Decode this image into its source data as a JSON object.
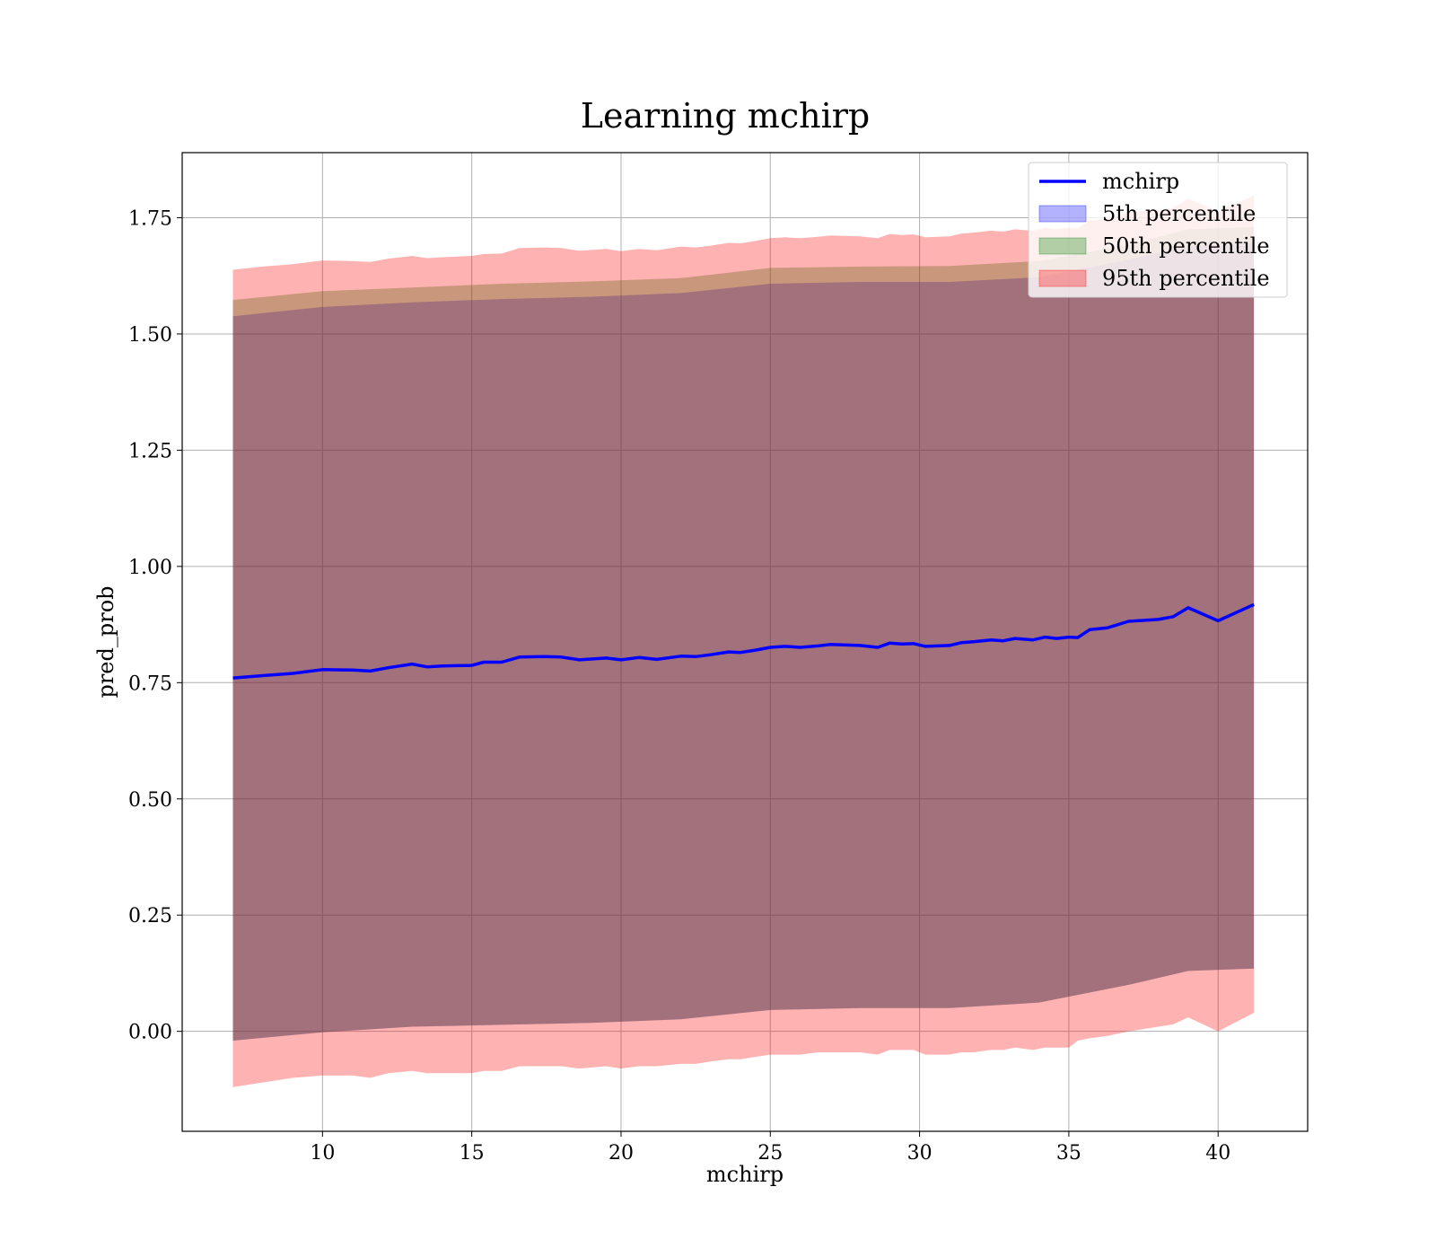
{
  "chart_data": {
    "type": "line",
    "title": "Learning mchirp",
    "xlabel": "mchirp",
    "ylabel": "pred_prob",
    "xlim": [
      5.3,
      43.0
    ],
    "ylim": [
      -0.215,
      1.89
    ],
    "xticks": [
      10,
      15,
      20,
      25,
      30,
      35,
      40
    ],
    "yticks": [
      0.0,
      0.25,
      0.5,
      0.75,
      1.0,
      1.25,
      1.5,
      1.75
    ],
    "ytick_labels": [
      "0.00",
      "0.25",
      "0.50",
      "0.75",
      "1.00",
      "1.25",
      "1.50",
      "1.75"
    ],
    "grid": true,
    "legend_position": "top-right",
    "colors": {
      "mchirp": "#0000ff",
      "p5": "#0000ff",
      "p50": "#008000",
      "p95": "#ff0000",
      "combined_band": "#a0727a"
    },
    "series": [
      {
        "name": "mchirp",
        "x": [
          7.0,
          8.0,
          9.0,
          10.0,
          11.0,
          11.6,
          12.2,
          13.0,
          13.5,
          14.0,
          15.0,
          15.4,
          16.0,
          16.6,
          17.4,
          18.0,
          18.6,
          19.5,
          20.0,
          20.6,
          21.2,
          22.0,
          22.5,
          23.0,
          23.6,
          24.0,
          24.5,
          25.0,
          25.5,
          26.0,
          26.6,
          27.0,
          28.0,
          28.6,
          29.0,
          29.4,
          29.8,
          30.2,
          31.0,
          31.4,
          31.8,
          32.4,
          32.8,
          33.2,
          33.8,
          34.2,
          34.6,
          35.0,
          35.3,
          35.7,
          36.3,
          37.0,
          38.0,
          38.5,
          39.0,
          40.0,
          41.2
        ],
        "y": [
          0.76,
          0.765,
          0.77,
          0.778,
          0.777,
          0.775,
          0.782,
          0.79,
          0.784,
          0.786,
          0.787,
          0.794,
          0.794,
          0.805,
          0.806,
          0.805,
          0.799,
          0.803,
          0.799,
          0.804,
          0.8,
          0.807,
          0.806,
          0.81,
          0.816,
          0.815,
          0.82,
          0.826,
          0.828,
          0.826,
          0.829,
          0.832,
          0.83,
          0.826,
          0.835,
          0.833,
          0.834,
          0.828,
          0.83,
          0.836,
          0.838,
          0.842,
          0.84,
          0.845,
          0.842,
          0.848,
          0.845,
          0.848,
          0.847,
          0.864,
          0.868,
          0.882,
          0.886,
          0.892,
          0.911,
          0.883,
          0.918
        ]
      }
    ],
    "bands": [
      {
        "name": "5th percentile",
        "x": [
          7.0,
          10.0,
          13.0,
          16.0,
          19.0,
          22.0,
          25.0,
          28.0,
          31.0,
          34.0,
          37.0,
          39.0,
          41.2
        ],
        "lower": [
          -0.02,
          -0.002,
          0.01,
          0.014,
          0.018,
          0.026,
          0.046,
          0.05,
          0.05,
          0.062,
          0.1,
          0.13,
          0.135
        ],
        "upper": [
          1.538,
          1.558,
          1.568,
          1.575,
          1.58,
          1.588,
          1.608,
          1.612,
          1.612,
          1.622,
          1.66,
          1.69,
          1.695
        ]
      },
      {
        "name": "50th percentile",
        "x": [
          7.0,
          10.0,
          13.0,
          16.0,
          19.0,
          22.0,
          25.0,
          28.0,
          31.0,
          34.0,
          37.0,
          39.0,
          41.2
        ],
        "lower": [
          -0.02,
          -0.002,
          0.01,
          0.014,
          0.018,
          0.026,
          0.046,
          0.05,
          0.05,
          0.062,
          0.1,
          0.13,
          0.135
        ],
        "upper": [
          1.573,
          1.592,
          1.6,
          1.608,
          1.613,
          1.62,
          1.642,
          1.645,
          1.646,
          1.657,
          1.692,
          1.725,
          1.73
        ]
      },
      {
        "name": "95th percentile",
        "x": [
          7.0,
          8.0,
          9.0,
          10.0,
          11.0,
          11.6,
          12.2,
          13.0,
          13.5,
          14.0,
          15.0,
          15.4,
          16.0,
          16.6,
          17.4,
          18.0,
          18.6,
          19.5,
          20.0,
          20.6,
          21.2,
          22.0,
          22.5,
          23.0,
          23.6,
          24.0,
          24.5,
          25.0,
          25.5,
          26.0,
          26.6,
          27.0,
          28.0,
          28.6,
          29.0,
          29.4,
          29.8,
          30.2,
          31.0,
          31.4,
          31.8,
          32.4,
          32.8,
          33.2,
          33.8,
          34.2,
          34.6,
          35.0,
          35.3,
          35.7,
          36.3,
          37.0,
          38.0,
          38.5,
          39.0,
          40.0,
          41.2
        ],
        "lower": [
          -0.12,
          -0.11,
          -0.1,
          -0.095,
          -0.095,
          -0.1,
          -0.09,
          -0.085,
          -0.09,
          -0.09,
          -0.09,
          -0.085,
          -0.085,
          -0.075,
          -0.075,
          -0.075,
          -0.08,
          -0.075,
          -0.08,
          -0.075,
          -0.075,
          -0.07,
          -0.07,
          -0.065,
          -0.06,
          -0.06,
          -0.055,
          -0.05,
          -0.05,
          -0.05,
          -0.045,
          -0.045,
          -0.045,
          -0.05,
          -0.04,
          -0.04,
          -0.04,
          -0.05,
          -0.05,
          -0.045,
          -0.045,
          -0.04,
          -0.04,
          -0.035,
          -0.04,
          -0.035,
          -0.035,
          -0.035,
          -0.02,
          -0.015,
          -0.01,
          0.0,
          0.01,
          0.015,
          0.03,
          0.0,
          0.04
        ],
        "upper": [
          1.638,
          1.645,
          1.65,
          1.658,
          1.657,
          1.655,
          1.662,
          1.668,
          1.663,
          1.665,
          1.668,
          1.672,
          1.673,
          1.685,
          1.686,
          1.685,
          1.679,
          1.683,
          1.678,
          1.683,
          1.68,
          1.688,
          1.686,
          1.69,
          1.696,
          1.695,
          1.7,
          1.706,
          1.708,
          1.706,
          1.709,
          1.712,
          1.71,
          1.706,
          1.715,
          1.713,
          1.714,
          1.708,
          1.71,
          1.716,
          1.718,
          1.722,
          1.72,
          1.725,
          1.722,
          1.728,
          1.725,
          1.728,
          1.727,
          1.744,
          1.748,
          1.762,
          1.766,
          1.772,
          1.791,
          1.763,
          1.798
        ]
      }
    ],
    "legend": [
      {
        "label": "mchirp",
        "kind": "line",
        "color": "#0000ff"
      },
      {
        "label": "5th percentile",
        "kind": "patch",
        "color": "#0000ff"
      },
      {
        "label": "50th percentile",
        "kind": "patch",
        "color": "#008000"
      },
      {
        "label": "95th percentile",
        "kind": "patch",
        "color": "#ff0000"
      }
    ]
  }
}
